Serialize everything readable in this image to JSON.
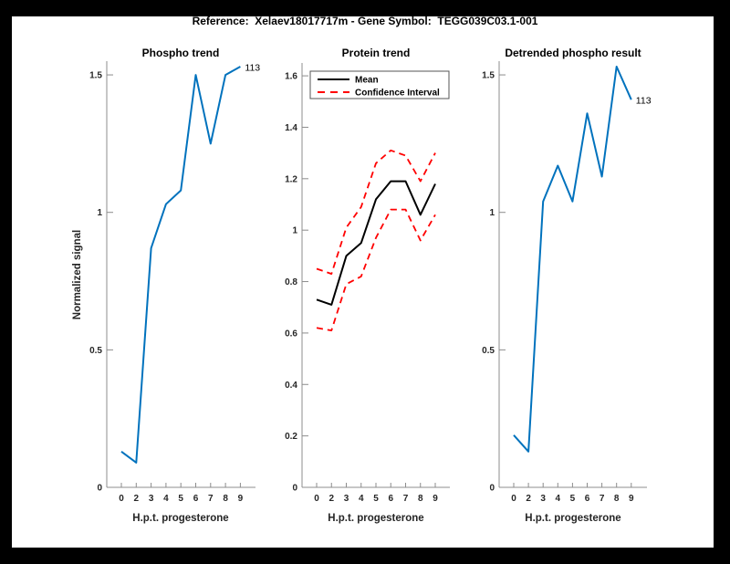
{
  "figure": {
    "title": "Reference:  Xelaev18017717m - Gene Symbol:  TEGG039C03.1-001",
    "frame_color": "#000000",
    "canvas_color": "#ffffff"
  },
  "palette": {
    "blue": "#0072BD",
    "red": "#FF0000",
    "black": "#000000",
    "axis_line": "#8c8c8c",
    "tick_label": "#262626"
  },
  "chart_data": [
    {
      "type": "line",
      "title": "Phospho trend",
      "xlabel": "H.p.t. progesterone",
      "ylabel": "Normalized signal",
      "categories": [
        "0",
        "2",
        "3",
        "4",
        "5",
        "6",
        "7",
        "8",
        "9"
      ],
      "series": [
        {
          "name": "phospho-signal",
          "color": "#0072BD",
          "style": "solid",
          "values": [
            0.13,
            0.09,
            0.87,
            1.03,
            1.08,
            1.5,
            1.25,
            1.5,
            1.53
          ]
        }
      ],
      "end_label": "113",
      "ylim": [
        0,
        1.55
      ],
      "ytick_values": [
        0,
        0.5,
        1,
        1.5
      ],
      "ytick_labels": [
        "0",
        "0.5",
        "1",
        "1.5"
      ],
      "legend": null,
      "grid": false
    },
    {
      "type": "line",
      "title": "Protein trend",
      "xlabel": "H.p.t. progesterone",
      "ylabel": "",
      "categories": [
        "0",
        "2",
        "3",
        "4",
        "5",
        "6",
        "7",
        "8",
        "9"
      ],
      "series": [
        {
          "name": "mean",
          "color": "#000000",
          "style": "solid",
          "values": [
            0.73,
            0.71,
            0.9,
            0.95,
            1.12,
            1.19,
            1.19,
            1.06,
            1.18
          ]
        },
        {
          "name": "ci-upper",
          "color": "#FF0000",
          "style": "dashed",
          "values": [
            0.85,
            0.83,
            1.01,
            1.09,
            1.26,
            1.31,
            1.29,
            1.19,
            1.3
          ]
        },
        {
          "name": "ci-lower",
          "color": "#FF0000",
          "style": "dashed",
          "values": [
            0.62,
            0.61,
            0.79,
            0.82,
            0.97,
            1.08,
            1.08,
            0.96,
            1.06
          ]
        }
      ],
      "end_label": null,
      "ylim": [
        0,
        1.65
      ],
      "ytick_values": [
        0,
        0.2,
        0.4,
        0.6,
        0.8,
        1,
        1.2,
        1.4,
        1.6
      ],
      "ytick_labels": [
        "0",
        "0.2",
        "0.4",
        "0.6",
        "0.8",
        "1",
        "1.2",
        "1.4",
        "1.6"
      ],
      "legend": {
        "position": "northwest",
        "entries": [
          "Mean",
          "Confidence Interval"
        ]
      },
      "grid": false
    },
    {
      "type": "line",
      "title": "Detrended phospho result",
      "xlabel": "H.p.t. progesterone",
      "ylabel": "",
      "categories": [
        "0",
        "2",
        "3",
        "4",
        "5",
        "6",
        "7",
        "8",
        "9"
      ],
      "series": [
        {
          "name": "detrended-phospho",
          "color": "#0072BD",
          "style": "solid",
          "values": [
            0.19,
            0.13,
            1.04,
            1.17,
            1.04,
            1.36,
            1.13,
            1.53,
            1.41
          ]
        }
      ],
      "end_label": "113",
      "ylim": [
        0,
        1.55
      ],
      "ytick_values": [
        0,
        0.5,
        1,
        1.5
      ],
      "ytick_labels": [
        "0",
        "0.5",
        "1",
        "1.5"
      ],
      "legend": null,
      "grid": false
    }
  ]
}
